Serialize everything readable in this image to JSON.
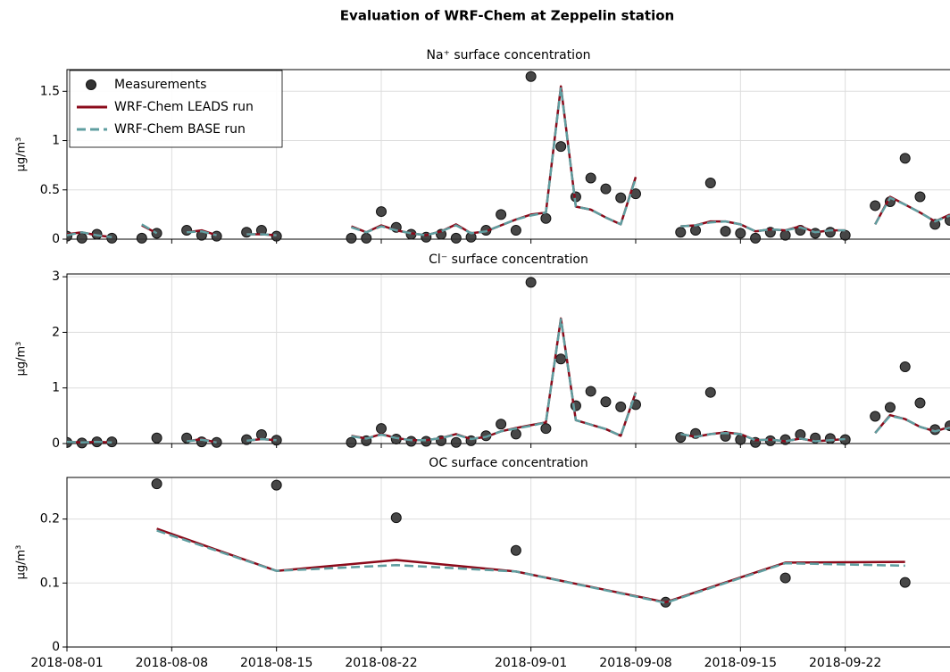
{
  "title": "Evaluation of WRF-Chem at Zeppelin station",
  "chart_data": [
    {
      "type": "line",
      "title": "Na⁺ surface concentration",
      "ylabel": "μg/m³",
      "x": [
        "2018-08-01",
        "2018-08-02",
        "2018-08-03",
        "2018-08-04",
        "2018-08-05",
        "2018-08-06",
        "2018-08-07",
        "2018-08-08",
        "2018-08-09",
        "2018-08-10",
        "2018-08-11",
        "2018-08-12",
        "2018-08-13",
        "2018-08-14",
        "2018-08-15",
        "2018-08-16",
        "2018-08-17",
        "2018-08-18",
        "2018-08-19",
        "2018-08-20",
        "2018-08-21",
        "2018-08-22",
        "2018-08-23",
        "2018-08-24",
        "2018-08-25",
        "2018-08-26",
        "2018-08-27",
        "2018-08-28",
        "2018-08-29",
        "2018-08-30",
        "2018-08-31",
        "2018-09-01",
        "2018-09-02",
        "2018-09-03",
        "2018-09-04",
        "2018-09-05",
        "2018-09-06",
        "2018-09-07",
        "2018-09-08",
        "2018-09-09",
        "2018-09-10",
        "2018-09-11",
        "2018-09-12",
        "2018-09-13",
        "2018-09-14",
        "2018-09-15",
        "2018-09-16",
        "2018-09-17",
        "2018-09-18",
        "2018-09-19",
        "2018-09-20",
        "2018-09-21",
        "2018-09-22",
        "2018-09-23",
        "2018-09-24",
        "2018-09-25",
        "2018-09-26",
        "2018-09-27",
        "2018-09-28",
        "2018-09-29"
      ],
      "series": [
        {
          "name": "Measurements",
          "color": "#333333",
          "style": "markers",
          "values": [
            0.03,
            0.01,
            0.05,
            0.01,
            null,
            0.01,
            0.06,
            null,
            0.09,
            0.04,
            0.03,
            null,
            0.07,
            0.09,
            0.03,
            null,
            null,
            null,
            null,
            0.01,
            0.01,
            0.28,
            0.12,
            0.05,
            0.02,
            0.05,
            0.01,
            0.02,
            0.09,
            0.25,
            0.09,
            1.65,
            0.21,
            0.94,
            0.43,
            0.62,
            0.51,
            0.42,
            0.46,
            null,
            null,
            0.07,
            0.09,
            0.57,
            0.08,
            0.06,
            0.01,
            0.07,
            0.04,
            0.09,
            0.06,
            0.07,
            0.04,
            null,
            0.34,
            0.38,
            0.82,
            0.43,
            0.15,
            0.19
          ]
        },
        {
          "name": "WRF-Chem LEADS run",
          "color": "#8b0a1a",
          "style": "solid",
          "values": [
            0.05,
            0.07,
            0.04,
            0.02,
            null,
            0.14,
            0.06,
            null,
            0.07,
            0.09,
            0.04,
            null,
            0.05,
            0.05,
            0.04,
            null,
            null,
            null,
            null,
            0.13,
            0.07,
            0.14,
            0.09,
            0.06,
            0.04,
            0.08,
            0.15,
            0.06,
            0.08,
            0.14,
            0.2,
            0.25,
            0.27,
            1.55,
            0.33,
            0.3,
            0.22,
            0.15,
            0.63,
            null,
            null,
            0.13,
            0.14,
            0.18,
            0.18,
            0.15,
            0.08,
            0.1,
            0.09,
            0.13,
            0.07,
            0.09,
            0.09,
            null,
            0.15,
            0.43,
            0.35,
            0.27,
            0.18,
            0.25
          ]
        },
        {
          "name": "WRF-Chem BASE run",
          "color": "#5f9ea0",
          "style": "dashed",
          "values": [
            0.04,
            0.07,
            0.04,
            0.02,
            null,
            0.15,
            0.06,
            null,
            0.07,
            0.08,
            0.04,
            null,
            0.05,
            0.05,
            0.04,
            null,
            null,
            null,
            null,
            0.12,
            0.07,
            0.13,
            0.09,
            0.06,
            0.04,
            0.08,
            0.14,
            0.06,
            0.08,
            0.14,
            0.2,
            0.24,
            0.27,
            1.54,
            0.33,
            0.3,
            0.22,
            0.15,
            0.62,
            null,
            null,
            0.13,
            0.14,
            0.17,
            0.18,
            0.15,
            0.08,
            0.1,
            0.09,
            0.12,
            0.07,
            0.09,
            0.09,
            null,
            0.15,
            0.42,
            0.35,
            0.27,
            0.18,
            0.24
          ]
        }
      ],
      "xlim": [
        "2018-08-01",
        "2018-09-29"
      ],
      "ylim": [
        0,
        1.72
      ],
      "yticks": [
        0,
        0.5,
        1,
        1.5
      ],
      "grid": true,
      "legend": "upper left"
    },
    {
      "type": "line",
      "title": "Cl⁻ surface concentration",
      "ylabel": "μg/m³",
      "x": [
        "2018-08-01",
        "2018-08-02",
        "2018-08-03",
        "2018-08-04",
        "2018-08-05",
        "2018-08-06",
        "2018-08-07",
        "2018-08-08",
        "2018-08-09",
        "2018-08-10",
        "2018-08-11",
        "2018-08-12",
        "2018-08-13",
        "2018-08-14",
        "2018-08-15",
        "2018-08-16",
        "2018-08-17",
        "2018-08-18",
        "2018-08-19",
        "2018-08-20",
        "2018-08-21",
        "2018-08-22",
        "2018-08-23",
        "2018-08-24",
        "2018-08-25",
        "2018-08-26",
        "2018-08-27",
        "2018-08-28",
        "2018-08-29",
        "2018-08-30",
        "2018-08-31",
        "2018-09-01",
        "2018-09-02",
        "2018-09-03",
        "2018-09-04",
        "2018-09-05",
        "2018-09-06",
        "2018-09-07",
        "2018-09-08",
        "2018-09-09",
        "2018-09-10",
        "2018-09-11",
        "2018-09-12",
        "2018-09-13",
        "2018-09-14",
        "2018-09-15",
        "2018-09-16",
        "2018-09-17",
        "2018-09-18",
        "2018-09-19",
        "2018-09-20",
        "2018-09-21",
        "2018-09-22",
        "2018-09-23",
        "2018-09-24",
        "2018-09-25",
        "2018-09-26",
        "2018-09-27",
        "2018-09-28",
        "2018-09-29"
      ],
      "series": [
        {
          "name": "Measurements",
          "color": "#333333",
          "style": "markers",
          "values": [
            0.02,
            0.01,
            0.03,
            0.03,
            null,
            null,
            0.1,
            null,
            0.1,
            0.03,
            0.02,
            null,
            0.07,
            0.16,
            0.06,
            null,
            null,
            null,
            null,
            0.02,
            0.05,
            0.27,
            0.08,
            0.04,
            0.04,
            0.05,
            0.02,
            0.05,
            0.14,
            0.35,
            0.17,
            2.9,
            0.27,
            1.52,
            0.68,
            0.94,
            0.75,
            0.66,
            0.7,
            null,
            null,
            0.11,
            0.18,
            0.92,
            0.13,
            0.07,
            0.02,
            0.05,
            0.07,
            0.16,
            0.1,
            0.09,
            0.07,
            null,
            0.49,
            0.65,
            1.38,
            0.73,
            0.25,
            0.32
          ]
        },
        {
          "name": "WRF-Chem LEADS run",
          "color": "#8b0a1a",
          "style": "solid",
          "values": [
            0.03,
            0.02,
            0.03,
            0.02,
            null,
            null,
            null,
            null,
            0.04,
            0.08,
            0.02,
            null,
            0.05,
            0.08,
            0.06,
            null,
            null,
            null,
            null,
            0.14,
            0.09,
            0.17,
            0.1,
            0.06,
            0.06,
            0.1,
            0.17,
            0.08,
            0.12,
            0.22,
            0.28,
            0.33,
            0.38,
            2.25,
            0.42,
            0.34,
            0.26,
            0.14,
            0.92,
            null,
            null,
            0.17,
            0.12,
            0.17,
            0.2,
            0.17,
            0.06,
            0.07,
            0.04,
            0.09,
            0.04,
            0.06,
            0.08,
            null,
            0.19,
            0.51,
            0.44,
            0.3,
            0.22,
            0.3
          ]
        },
        {
          "name": "WRF-Chem BASE run",
          "color": "#5f9ea0",
          "style": "dashed",
          "values": [
            0.03,
            0.02,
            0.03,
            0.02,
            null,
            null,
            null,
            null,
            0.04,
            0.07,
            0.02,
            null,
            0.05,
            0.08,
            0.06,
            null,
            null,
            null,
            null,
            0.13,
            0.09,
            0.16,
            0.1,
            0.06,
            0.06,
            0.1,
            0.16,
            0.08,
            0.12,
            0.22,
            0.27,
            0.32,
            0.38,
            2.24,
            0.42,
            0.34,
            0.26,
            0.14,
            0.91,
            null,
            null,
            0.17,
            0.12,
            0.17,
            0.19,
            0.17,
            0.06,
            0.07,
            0.04,
            0.09,
            0.04,
            0.06,
            0.08,
            null,
            0.19,
            0.5,
            0.44,
            0.3,
            0.22,
            0.29
          ]
        }
      ],
      "xlim": [
        "2018-08-01",
        "2018-09-29"
      ],
      "ylim": [
        0,
        3.05
      ],
      "yticks": [
        0,
        1,
        2,
        3
      ],
      "grid": true
    },
    {
      "type": "line",
      "title": "OC surface concentration",
      "ylabel": "μg/m³",
      "x": [
        "2018-08-07",
        "2018-08-15",
        "2018-08-23",
        "2018-08-31",
        "2018-09-10",
        "2018-09-18",
        "2018-09-26"
      ],
      "series": [
        {
          "name": "Measurements",
          "color": "#333333",
          "style": "markers",
          "values": [
            0.255,
            0.253,
            0.202,
            0.151,
            0.07,
            0.108,
            0.101
          ]
        },
        {
          "name": "WRF-Chem LEADS run",
          "color": "#8b0a1a",
          "style": "solid",
          "values": [
            0.185,
            0.119,
            0.136,
            0.118,
            0.07,
            0.132,
            0.133
          ]
        },
        {
          "name": "WRF-Chem BASE run",
          "color": "#5f9ea0",
          "style": "dashed",
          "values": [
            0.182,
            0.119,
            0.128,
            0.118,
            0.069,
            0.131,
            0.127
          ]
        }
      ],
      "xlim": [
        "2018-08-01",
        "2018-09-29"
      ],
      "ylim": [
        0,
        0.265
      ],
      "yticks": [
        0,
        0.1,
        0.2
      ],
      "xticks": [
        "2018-08-01",
        "2018-08-08",
        "2018-08-15",
        "2018-08-22",
        "2018-09-01",
        "2018-09-08",
        "2018-09-15",
        "2018-09-22"
      ],
      "grid": true
    }
  ]
}
